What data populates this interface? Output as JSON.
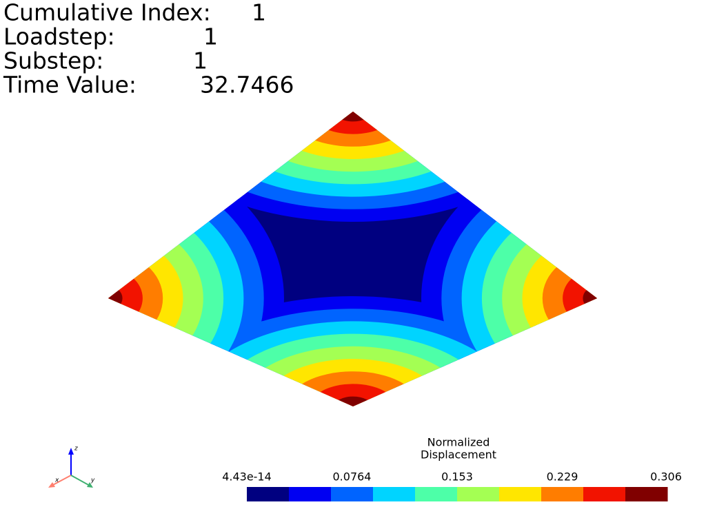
{
  "info": [
    {
      "label": "Cumulative Index:",
      "value": "1"
    },
    {
      "label": "Loadstep:",
      "value": "1"
    },
    {
      "label": "Substep:",
      "value": "1"
    },
    {
      "label": "Time Value:",
      "value": "32.7466"
    }
  ],
  "scalar_bar": {
    "title_lines": [
      "Normalized",
      "Displacement"
    ],
    "tick_labels": [
      "4.43e-14",
      "0.0764",
      "0.153",
      "0.229",
      "0.306"
    ],
    "colors": [
      "#000080",
      "#0000f2",
      "#0064ff",
      "#00d4ff",
      "#4dffa8",
      "#a4ff53",
      "#ffe600",
      "#ff7d00",
      "#f21300",
      "#800000"
    ]
  },
  "axes": {
    "x": "x",
    "y": "y",
    "z": "z"
  }
}
